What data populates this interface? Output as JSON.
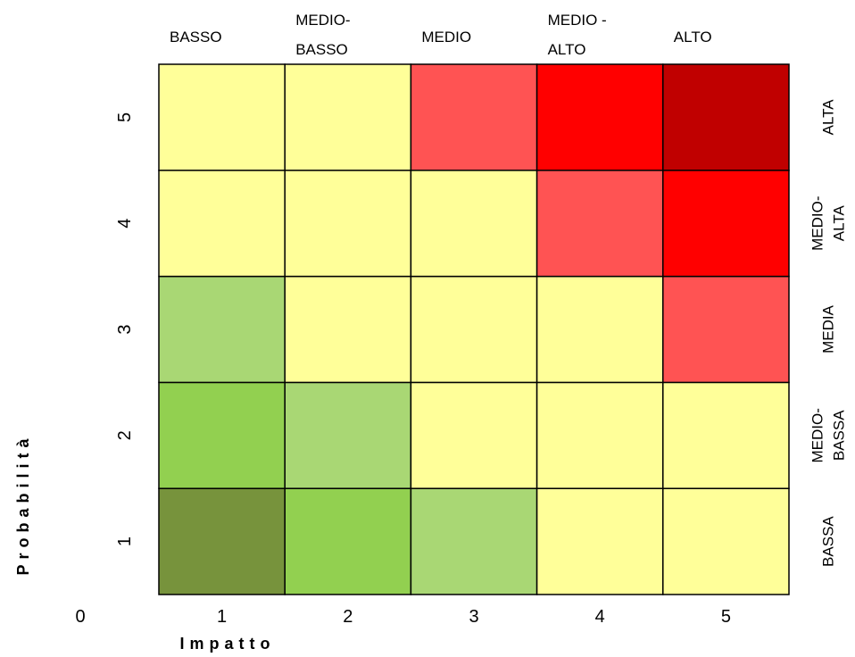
{
  "chart_data": {
    "type": "heatmap",
    "x_title": "Impatto",
    "y_title": "Probabilità",
    "origin_label": "0",
    "x_ticks": [
      "1",
      "2",
      "3",
      "4",
      "5"
    ],
    "y_ticks": [
      "1",
      "2",
      "3",
      "4",
      "5"
    ],
    "impact_levels": [
      [
        "BASSO"
      ],
      [
        "MEDIO-",
        "BASSO"
      ],
      [
        "MEDIO"
      ],
      [
        "MEDIO -",
        "ALTO"
      ],
      [
        "ALTO"
      ]
    ],
    "probability_levels": [
      [
        "BASSA"
      ],
      [
        "MEDIO-",
        "BASSA"
      ],
      [
        "MEDIA"
      ],
      [
        "MEDIO-",
        "ALTA"
      ],
      [
        "ALTA"
      ]
    ],
    "grid": true,
    "colors": {
      "dark_green": "#77933c",
      "green": "#92d050",
      "light_green": "#a9d774",
      "yellow": "#ffff99",
      "light_red": "#ff5353",
      "red": "#ff0000",
      "dark_red": "#c00000"
    },
    "cells": [
      [
        "dark_green",
        "green",
        "light_green",
        "yellow",
        "yellow"
      ],
      [
        "green",
        "light_green",
        "yellow",
        "yellow",
        "yellow"
      ],
      [
        "light_green",
        "yellow",
        "yellow",
        "yellow",
        "light_red"
      ],
      [
        "yellow",
        "yellow",
        "yellow",
        "light_red",
        "red"
      ],
      [
        "yellow",
        "yellow",
        "light_red",
        "red",
        "dark_red"
      ]
    ]
  }
}
